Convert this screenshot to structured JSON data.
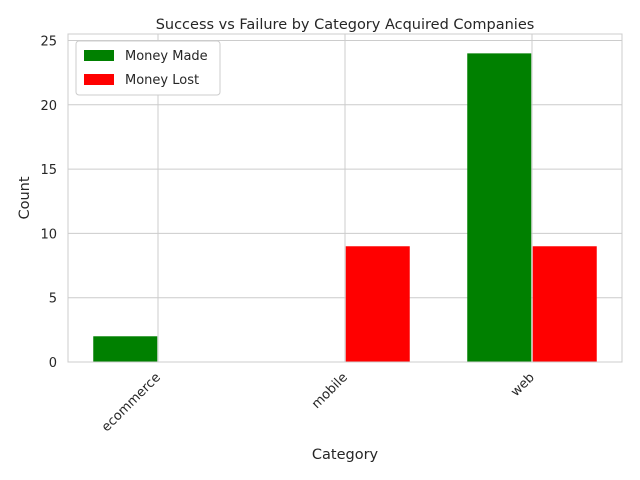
{
  "chart_data": {
    "type": "bar",
    "title": "Success vs Failure by Category Acquired Companies",
    "xlabel": "Category",
    "ylabel": "Count",
    "categories": [
      "ecommerce",
      "mobile",
      "web"
    ],
    "series": [
      {
        "name": "Money Made",
        "color": "#008000",
        "values": [
          2,
          0,
          24
        ]
      },
      {
        "name": "Money Lost",
        "color": "#ff0000",
        "values": [
          0,
          9,
          9
        ]
      }
    ],
    "ylim": [
      0,
      25
    ],
    "yticks": [
      0,
      5,
      10,
      15,
      20,
      25
    ],
    "grid": true,
    "legend_position": "top-left"
  }
}
